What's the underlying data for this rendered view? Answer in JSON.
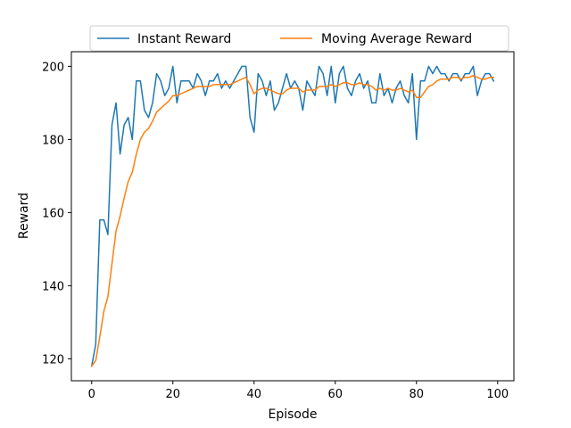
{
  "chart_data": {
    "type": "line",
    "xlabel": "Episode",
    "ylabel": "Reward",
    "xlim": [
      -5,
      104
    ],
    "ylim": [
      114,
      204
    ],
    "xticks": [
      0,
      20,
      40,
      60,
      80,
      100
    ],
    "yticks": [
      120,
      140,
      160,
      180,
      200
    ],
    "grid": false,
    "legend_position": "top-center",
    "x": [
      0,
      1,
      2,
      3,
      4,
      5,
      6,
      7,
      8,
      9,
      10,
      11,
      12,
      13,
      14,
      15,
      16,
      17,
      18,
      19,
      20,
      21,
      22,
      23,
      24,
      25,
      26,
      27,
      28,
      29,
      30,
      31,
      32,
      33,
      34,
      35,
      36,
      37,
      38,
      39,
      40,
      41,
      42,
      43,
      44,
      45,
      46,
      47,
      48,
      49,
      50,
      51,
      52,
      53,
      54,
      55,
      56,
      57,
      58,
      59,
      60,
      61,
      62,
      63,
      64,
      65,
      66,
      67,
      68,
      69,
      70,
      71,
      72,
      73,
      74,
      75,
      76,
      77,
      78,
      79,
      80,
      81,
      82,
      83,
      84,
      85,
      86,
      87,
      88,
      89,
      90,
      91,
      92,
      93,
      94,
      95,
      96,
      97,
      98,
      99
    ],
    "series": [
      {
        "name": "Instant Reward",
        "color": "#1f77b4",
        "values": [
          118,
          124,
          158,
          158,
          154,
          184,
          190,
          176,
          184,
          186,
          180,
          196,
          196,
          188,
          186,
          190,
          198,
          196,
          192,
          194,
          200,
          190,
          196,
          196,
          196,
          194,
          198,
          196,
          192,
          196,
          196,
          198,
          194,
          196,
          194,
          196,
          198,
          200,
          200,
          186,
          182,
          198,
          196,
          192,
          196,
          188,
          190,
          194,
          198,
          194,
          196,
          194,
          188,
          196,
          194,
          192,
          200,
          198,
          192,
          200,
          190,
          198,
          200,
          194,
          192,
          196,
          198,
          194,
          196,
          190,
          190,
          198,
          192,
          194,
          190,
          194,
          196,
          192,
          190,
          198,
          180,
          196,
          196,
          200,
          198,
          200,
          198,
          198,
          196,
          198,
          198,
          196,
          198,
          198,
          200,
          192,
          196,
          198,
          198,
          196
        ]
      },
      {
        "name": "Moving Average Reward",
        "color": "#ff7f0e",
        "values": [
          118,
          119.5,
          126,
          133,
          137,
          146,
          155,
          159,
          164,
          168.5,
          171,
          176,
          180,
          182,
          183,
          185,
          187.5,
          188.5,
          189.5,
          190.5,
          192,
          192,
          192.5,
          193,
          193.5,
          194,
          194.5,
          194.5,
          194.5,
          194.5,
          195,
          195,
          195,
          195,
          195,
          195.5,
          196,
          196.5,
          197,
          195,
          192.5,
          193.5,
          194,
          194,
          193.5,
          193,
          192.5,
          192.5,
          193.5,
          194,
          194,
          194,
          193,
          193.5,
          193.5,
          193.5,
          194.5,
          194.5,
          194.5,
          195,
          194.5,
          195,
          195.5,
          195.5,
          195,
          195,
          195.5,
          195,
          195,
          194.5,
          193.5,
          194,
          193.5,
          194,
          193.5,
          193.5,
          194,
          193.5,
          193,
          193.5,
          191.5,
          191.5,
          193,
          194.5,
          195,
          196,
          196.5,
          196.5,
          196.5,
          197,
          197,
          196.5,
          197,
          197,
          197.5,
          197,
          196.5,
          196.5,
          197,
          197
        ]
      }
    ]
  }
}
